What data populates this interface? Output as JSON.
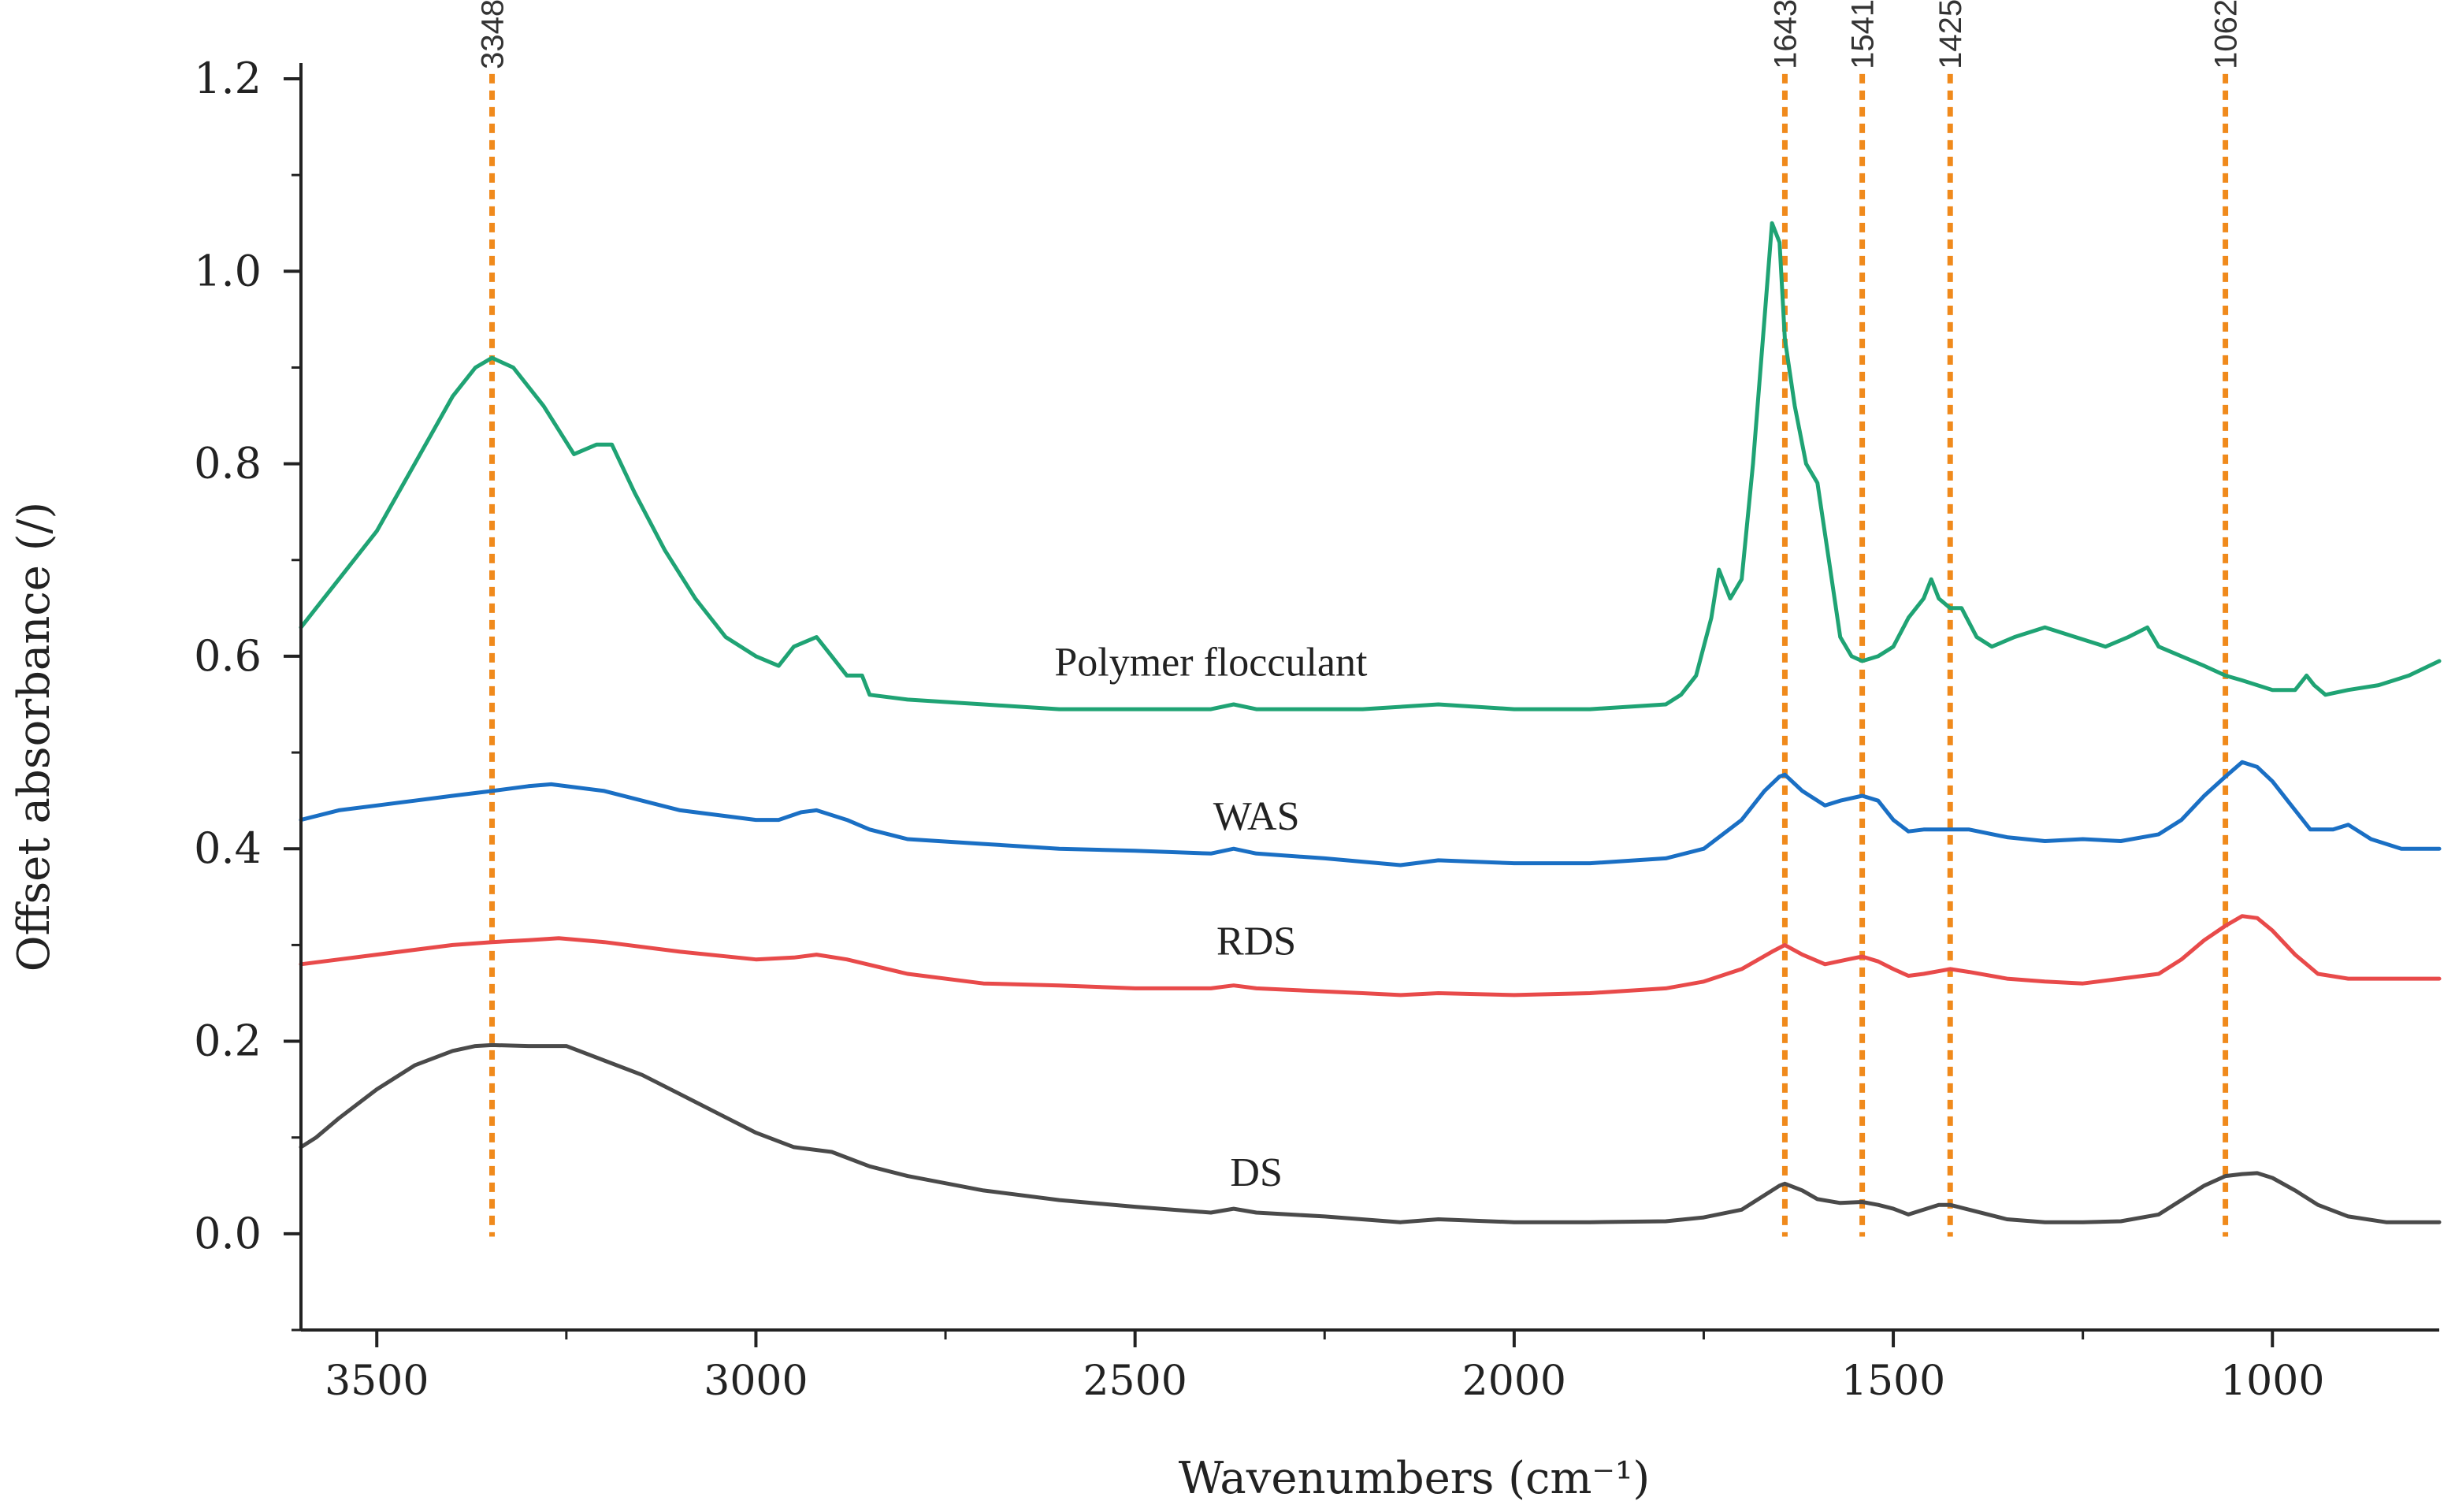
{
  "chart_data": {
    "type": "line",
    "title": "",
    "xlabel": "Wavenumbers (cm⁻¹)",
    "ylabel": "Offset absorbance (/)",
    "xlim": [
      3600,
      780
    ],
    "ylim": [
      -0.1,
      1.2
    ],
    "xticks": [
      3500,
      3000,
      2500,
      2000,
      1500,
      1000
    ],
    "xtick_labels": [
      "3500",
      "3000",
      "2500",
      "2000",
      "1500",
      "1000"
    ],
    "yticks": [
      0.0,
      0.2,
      0.4,
      0.6,
      0.8,
      1.0,
      1.2
    ],
    "ytick_labels": [
      "0.0",
      "0.2",
      "0.4",
      "0.6",
      "0.8",
      "1.0",
      "1.2"
    ],
    "grid": false,
    "reference_lines": [
      {
        "x": 3348,
        "label": "3348",
        "color": "#f08a1c"
      },
      {
        "x": 1643,
        "label": "1643",
        "color": "#f08a1c"
      },
      {
        "x": 1541,
        "label": "1541",
        "color": "#f08a1c"
      },
      {
        "x": 1425,
        "label": "1425",
        "color": "#f08a1c"
      },
      {
        "x": 1062,
        "label": "1062",
        "color": "#f08a1c"
      }
    ],
    "series": [
      {
        "name": "Polymer flocculant",
        "color": "#1fa374",
        "label_at": [
          2400,
          0.58
        ],
        "points": [
          [
            3600,
            0.63
          ],
          [
            3580,
            0.65
          ],
          [
            3550,
            0.68
          ],
          [
            3500,
            0.73
          ],
          [
            3450,
            0.8
          ],
          [
            3400,
            0.87
          ],
          [
            3370,
            0.9
          ],
          [
            3348,
            0.91
          ],
          [
            3320,
            0.9
          ],
          [
            3280,
            0.86
          ],
          [
            3240,
            0.81
          ],
          [
            3210,
            0.82
          ],
          [
            3190,
            0.82
          ],
          [
            3160,
            0.77
          ],
          [
            3120,
            0.71
          ],
          [
            3080,
            0.66
          ],
          [
            3040,
            0.62
          ],
          [
            3000,
            0.6
          ],
          [
            2970,
            0.59
          ],
          [
            2950,
            0.61
          ],
          [
            2920,
            0.62
          ],
          [
            2900,
            0.6
          ],
          [
            2880,
            0.58
          ],
          [
            2860,
            0.58
          ],
          [
            2850,
            0.56
          ],
          [
            2800,
            0.555
          ],
          [
            2700,
            0.55
          ],
          [
            2600,
            0.545
          ],
          [
            2500,
            0.545
          ],
          [
            2400,
            0.545
          ],
          [
            2370,
            0.55
          ],
          [
            2340,
            0.545
          ],
          [
            2200,
            0.545
          ],
          [
            2100,
            0.55
          ],
          [
            2000,
            0.545
          ],
          [
            1900,
            0.545
          ],
          [
            1800,
            0.55
          ],
          [
            1780,
            0.56
          ],
          [
            1760,
            0.58
          ],
          [
            1740,
            0.64
          ],
          [
            1730,
            0.69
          ],
          [
            1715,
            0.66
          ],
          [
            1700,
            0.68
          ],
          [
            1685,
            0.8
          ],
          [
            1670,
            0.95
          ],
          [
            1660,
            1.05
          ],
          [
            1650,
            1.03
          ],
          [
            1643,
            0.93
          ],
          [
            1630,
            0.86
          ],
          [
            1615,
            0.8
          ],
          [
            1600,
            0.78
          ],
          [
            1585,
            0.7
          ],
          [
            1570,
            0.62
          ],
          [
            1555,
            0.6
          ],
          [
            1541,
            0.595
          ],
          [
            1520,
            0.6
          ],
          [
            1500,
            0.61
          ],
          [
            1480,
            0.64
          ],
          [
            1460,
            0.66
          ],
          [
            1450,
            0.68
          ],
          [
            1440,
            0.66
          ],
          [
            1425,
            0.65
          ],
          [
            1410,
            0.65
          ],
          [
            1390,
            0.62
          ],
          [
            1370,
            0.61
          ],
          [
            1340,
            0.62
          ],
          [
            1300,
            0.63
          ],
          [
            1260,
            0.62
          ],
          [
            1220,
            0.61
          ],
          [
            1190,
            0.62
          ],
          [
            1165,
            0.63
          ],
          [
            1150,
            0.61
          ],
          [
            1120,
            0.6
          ],
          [
            1090,
            0.59
          ],
          [
            1062,
            0.58
          ],
          [
            1040,
            0.575
          ],
          [
            1000,
            0.565
          ],
          [
            970,
            0.565
          ],
          [
            955,
            0.58
          ],
          [
            945,
            0.57
          ],
          [
            930,
            0.56
          ],
          [
            900,
            0.565
          ],
          [
            860,
            0.57
          ],
          [
            820,
            0.58
          ],
          [
            780,
            0.595
          ]
        ]
      },
      {
        "name": "WAS",
        "color": "#1a6fc4",
        "label_at": [
          2340,
          0.42
        ],
        "points": [
          [
            3600,
            0.43
          ],
          [
            3550,
            0.44
          ],
          [
            3500,
            0.445
          ],
          [
            3450,
            0.45
          ],
          [
            3400,
            0.455
          ],
          [
            3348,
            0.46
          ],
          [
            3300,
            0.465
          ],
          [
            3270,
            0.467
          ],
          [
            3200,
            0.46
          ],
          [
            3150,
            0.45
          ],
          [
            3100,
            0.44
          ],
          [
            3050,
            0.435
          ],
          [
            3000,
            0.43
          ],
          [
            2970,
            0.43
          ],
          [
            2940,
            0.438
          ],
          [
            2920,
            0.44
          ],
          [
            2880,
            0.43
          ],
          [
            2850,
            0.42
          ],
          [
            2800,
            0.41
          ],
          [
            2700,
            0.405
          ],
          [
            2600,
            0.4
          ],
          [
            2500,
            0.398
          ],
          [
            2400,
            0.395
          ],
          [
            2370,
            0.4
          ],
          [
            2340,
            0.395
          ],
          [
            2250,
            0.39
          ],
          [
            2150,
            0.383
          ],
          [
            2100,
            0.388
          ],
          [
            2000,
            0.385
          ],
          [
            1900,
            0.385
          ],
          [
            1800,
            0.39
          ],
          [
            1750,
            0.4
          ],
          [
            1700,
            0.43
          ],
          [
            1670,
            0.46
          ],
          [
            1650,
            0.475
          ],
          [
            1643,
            0.477
          ],
          [
            1620,
            0.46
          ],
          [
            1590,
            0.445
          ],
          [
            1570,
            0.45
          ],
          [
            1541,
            0.455
          ],
          [
            1520,
            0.45
          ],
          [
            1500,
            0.43
          ],
          [
            1480,
            0.418
          ],
          [
            1460,
            0.42
          ],
          [
            1425,
            0.42
          ],
          [
            1400,
            0.42
          ],
          [
            1350,
            0.412
          ],
          [
            1300,
            0.408
          ],
          [
            1250,
            0.41
          ],
          [
            1200,
            0.408
          ],
          [
            1150,
            0.415
          ],
          [
            1120,
            0.43
          ],
          [
            1090,
            0.455
          ],
          [
            1062,
            0.475
          ],
          [
            1040,
            0.49
          ],
          [
            1020,
            0.485
          ],
          [
            1000,
            0.47
          ],
          [
            980,
            0.45
          ],
          [
            950,
            0.42
          ],
          [
            920,
            0.42
          ],
          [
            900,
            0.425
          ],
          [
            870,
            0.41
          ],
          [
            830,
            0.4
          ],
          [
            780,
            0.4
          ]
        ]
      },
      {
        "name": "RDS",
        "color": "#e84a4a",
        "label_at": [
          2340,
          0.29
        ],
        "points": [
          [
            3600,
            0.28
          ],
          [
            3500,
            0.29
          ],
          [
            3400,
            0.3
          ],
          [
            3348,
            0.303
          ],
          [
            3300,
            0.305
          ],
          [
            3260,
            0.307
          ],
          [
            3200,
            0.303
          ],
          [
            3100,
            0.293
          ],
          [
            3000,
            0.285
          ],
          [
            2950,
            0.287
          ],
          [
            2920,
            0.29
          ],
          [
            2880,
            0.285
          ],
          [
            2800,
            0.27
          ],
          [
            2700,
            0.26
          ],
          [
            2600,
            0.258
          ],
          [
            2500,
            0.255
          ],
          [
            2400,
            0.255
          ],
          [
            2370,
            0.258
          ],
          [
            2340,
            0.255
          ],
          [
            2200,
            0.25
          ],
          [
            2150,
            0.248
          ],
          [
            2100,
            0.25
          ],
          [
            2000,
            0.248
          ],
          [
            1900,
            0.25
          ],
          [
            1800,
            0.255
          ],
          [
            1750,
            0.262
          ],
          [
            1700,
            0.275
          ],
          [
            1660,
            0.293
          ],
          [
            1643,
            0.3
          ],
          [
            1620,
            0.29
          ],
          [
            1590,
            0.28
          ],
          [
            1560,
            0.285
          ],
          [
            1541,
            0.288
          ],
          [
            1520,
            0.283
          ],
          [
            1500,
            0.275
          ],
          [
            1480,
            0.268
          ],
          [
            1460,
            0.27
          ],
          [
            1425,
            0.275
          ],
          [
            1400,
            0.272
          ],
          [
            1350,
            0.265
          ],
          [
            1300,
            0.262
          ],
          [
            1250,
            0.26
          ],
          [
            1200,
            0.265
          ],
          [
            1150,
            0.27
          ],
          [
            1120,
            0.285
          ],
          [
            1090,
            0.305
          ],
          [
            1062,
            0.32
          ],
          [
            1040,
            0.33
          ],
          [
            1020,
            0.328
          ],
          [
            1000,
            0.315
          ],
          [
            970,
            0.29
          ],
          [
            940,
            0.27
          ],
          [
            900,
            0.265
          ],
          [
            850,
            0.265
          ],
          [
            780,
            0.265
          ]
        ]
      },
      {
        "name": "DS",
        "color": "#4a4a4a",
        "label_at": [
          2340,
          0.05
        ],
        "points": [
          [
            3600,
            0.09
          ],
          [
            3580,
            0.1
          ],
          [
            3550,
            0.12
          ],
          [
            3500,
            0.15
          ],
          [
            3450,
            0.175
          ],
          [
            3400,
            0.19
          ],
          [
            3370,
            0.195
          ],
          [
            3348,
            0.196
          ],
          [
            3300,
            0.195
          ],
          [
            3250,
            0.195
          ],
          [
            3200,
            0.18
          ],
          [
            3150,
            0.165
          ],
          [
            3100,
            0.145
          ],
          [
            3050,
            0.125
          ],
          [
            3000,
            0.105
          ],
          [
            2950,
            0.09
          ],
          [
            2900,
            0.085
          ],
          [
            2850,
            0.07
          ],
          [
            2800,
            0.06
          ],
          [
            2700,
            0.045
          ],
          [
            2600,
            0.035
          ],
          [
            2500,
            0.028
          ],
          [
            2400,
            0.022
          ],
          [
            2370,
            0.026
          ],
          [
            2340,
            0.022
          ],
          [
            2250,
            0.018
          ],
          [
            2150,
            0.012
          ],
          [
            2100,
            0.015
          ],
          [
            2000,
            0.012
          ],
          [
            1900,
            0.012
          ],
          [
            1800,
            0.013
          ],
          [
            1750,
            0.017
          ],
          [
            1700,
            0.025
          ],
          [
            1670,
            0.04
          ],
          [
            1650,
            0.05
          ],
          [
            1643,
            0.052
          ],
          [
            1620,
            0.045
          ],
          [
            1600,
            0.036
          ],
          [
            1570,
            0.032
          ],
          [
            1541,
            0.033
          ],
          [
            1520,
            0.03
          ],
          [
            1500,
            0.026
          ],
          [
            1480,
            0.02
          ],
          [
            1460,
            0.025
          ],
          [
            1440,
            0.03
          ],
          [
            1425,
            0.03
          ],
          [
            1400,
            0.025
          ],
          [
            1350,
            0.015
          ],
          [
            1300,
            0.012
          ],
          [
            1250,
            0.012
          ],
          [
            1200,
            0.013
          ],
          [
            1150,
            0.02
          ],
          [
            1120,
            0.035
          ],
          [
            1090,
            0.05
          ],
          [
            1062,
            0.06
          ],
          [
            1040,
            0.062
          ],
          [
            1020,
            0.063
          ],
          [
            1000,
            0.058
          ],
          [
            970,
            0.045
          ],
          [
            940,
            0.03
          ],
          [
            900,
            0.018
          ],
          [
            850,
            0.012
          ],
          [
            780,
            0.012
          ]
        ]
      }
    ]
  }
}
